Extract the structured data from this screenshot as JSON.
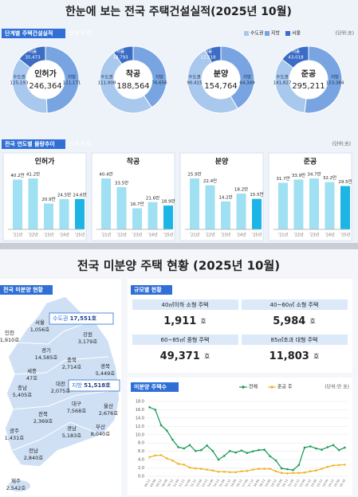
{
  "header": {
    "title": "한눈에 보는 전국 주택건설실적(2025년 10월)"
  },
  "stage": {
    "title": "단계별 주택건설실적",
    "note": "(10월 누계)",
    "legend": [
      "수도권",
      "지방",
      "서울"
    ],
    "unit": "(단위:호)"
  },
  "trend": {
    "title": "전국 연도별 물량추이",
    "note": "(10월 누계)",
    "unit": "(단위:호)"
  },
  "chart_data": [
    {
      "type": "pie",
      "title": "인허가",
      "categories": [
        "수도권",
        "지방",
        "서울"
      ],
      "values": [
        125193,
        121171,
        35473
      ],
      "value_labels": [
        "125,193",
        "121,171",
        "35,473"
      ],
      "total": "246,364",
      "colors": [
        "#a9c8ee",
        "#78a5e2",
        "#3b6cc6"
      ]
    },
    {
      "type": "pie",
      "title": "착공",
      "categories": [
        "수도권",
        "지방",
        "서울"
      ],
      "values": [
        111908,
        76656,
        18793
      ],
      "value_labels": [
        "111,908",
        "76,656",
        "18,793"
      ],
      "total": "188,564",
      "colors": [
        "#a9c8ee",
        "#78a5e2",
        "#3b6cc6"
      ]
    },
    {
      "type": "pie",
      "title": "분양",
      "categories": [
        "수도권",
        "지방",
        "서울"
      ],
      "values": [
        90415,
        64349,
        12218
      ],
      "value_labels": [
        "90,415",
        "64,349",
        "12,218"
      ],
      "total": "154,764",
      "colors": [
        "#a9c8ee",
        "#78a5e2",
        "#3b6cc6"
      ]
    },
    {
      "type": "pie",
      "title": "준공",
      "categories": [
        "수도권",
        "지방",
        "서울"
      ],
      "values": [
        141827,
        153384,
        43018
      ],
      "value_labels": [
        "141,827",
        "153,384",
        "43,018"
      ],
      "total": "295,211",
      "colors": [
        "#a9c8ee",
        "#78a5e2",
        "#3b6cc6"
      ]
    },
    {
      "type": "bar",
      "title": "인허가",
      "categories": [
        "'21년",
        "'22년",
        "'23년",
        "'24년",
        "'25년"
      ],
      "values": [
        40.2,
        41.2,
        20.9,
        24.5,
        24.6
      ],
      "value_labels": [
        "40.2만",
        "41.2만",
        "20.9만",
        "24.5만",
        "24.6만"
      ],
      "colors": [
        "#9fe0f2",
        "#9fe0f2",
        "#9fe0f2",
        "#9fe0f2",
        "#1cb5e6"
      ]
    },
    {
      "type": "bar",
      "title": "착공",
      "categories": [
        "'21년",
        "'22년",
        "'23년",
        "'24년",
        "'25년"
      ],
      "values": [
        40.4,
        33.5,
        16.7,
        21.6,
        18.9
      ],
      "value_labels": [
        "40.4만",
        "33.5만",
        "16.7만",
        "21.6만",
        "18.9만"
      ],
      "colors": [
        "#9fe0f2",
        "#9fe0f2",
        "#9fe0f2",
        "#9fe0f2",
        "#1cb5e6"
      ]
    },
    {
      "type": "bar",
      "title": "분양",
      "categories": [
        "'21년",
        "'22년",
        "'23년",
        "'24년",
        "'25년"
      ],
      "values": [
        25.9,
        22.4,
        14.2,
        18.2,
        15.5
      ],
      "value_labels": [
        "25.9만",
        "22.4만",
        "14.2만",
        "18.2만",
        "15.5만"
      ],
      "colors": [
        "#9fe0f2",
        "#9fe0f2",
        "#9fe0f2",
        "#9fe0f2",
        "#1cb5e6"
      ]
    },
    {
      "type": "bar",
      "title": "준공",
      "categories": [
        "'21년",
        "'22년",
        "'23년",
        "'24년",
        "'25년"
      ],
      "values": [
        31.7,
        33.9,
        34.7,
        32.2,
        29.5
      ],
      "value_labels": [
        "31.7만",
        "33.9만",
        "34.7만",
        "32.2만",
        "29.5만"
      ],
      "colors": [
        "#9fe0f2",
        "#9fe0f2",
        "#9fe0f2",
        "#9fe0f2",
        "#1cb5e6"
      ]
    },
    {
      "type": "line",
      "title": "미분양 주택수",
      "unit": "(단위:만 호)",
      "categories": [
        "'08.12",
        "'09.06",
        "'09.12",
        "'10.06",
        "'10.12",
        "'11.06",
        "'11.12",
        "'12.06",
        "'12.12",
        "'13.06",
        "'13.12",
        "'14.06",
        "'14.12",
        "'15.06",
        "'15.12",
        "'16.06",
        "'16.12",
        "'17.06",
        "'17.12",
        "'18.06",
        "'18.12",
        "'19.06",
        "'19.12",
        "'20.06",
        "'20.12",
        "'21.06",
        "'21.12",
        "'22.06",
        "'22.12",
        "'23.06",
        "'23.12",
        "'24.06",
        "'24.12",
        "'25.06",
        "'25.10"
      ],
      "series": [
        {
          "name": "전체",
          "color": "#1f9e5a",
          "values": [
            16.6,
            16.0,
            12.3,
            11.0,
            8.8,
            7.0,
            6.7,
            7.5,
            6.1,
            6.3,
            7.4,
            6.1,
            4.0,
            4.9,
            6.1,
            5.7,
            6.2,
            5.6,
            6.0,
            6.3,
            6.4,
            4.8,
            3.8,
            1.9,
            1.7,
            1.5,
            2.7,
            6.9,
            7.2,
            6.7,
            6.4,
            7.0,
            7.5,
            6.3,
            6.9
          ]
        },
        {
          "name": "준공 후",
          "color": "#f0b429",
          "values": [
            4.6,
            5.0,
            5.1,
            4.3,
            3.8,
            3.0,
            2.8,
            2.1,
            1.9,
            1.8,
            1.6,
            1.4,
            1.1,
            1.1,
            1.0,
            1.0,
            1.2,
            1.3,
            1.6,
            1.8,
            1.8,
            1.8,
            1.2,
            0.8,
            0.7,
            0.8,
            0.8,
            0.9,
            1.2,
            1.4,
            1.8,
            2.3,
            2.6,
            2.7,
            2.8
          ]
        }
      ],
      "ylim": [
        0,
        18
      ],
      "yticks": [
        {
          "value": 0,
          "label": "0.0"
        },
        {
          "value": 2,
          "label": "2.0"
        },
        {
          "value": 4,
          "label": "4.0"
        },
        {
          "value": 6,
          "label": "6.0"
        },
        {
          "value": 8,
          "label": "8.0"
        },
        {
          "value": 10,
          "label": "10.0"
        },
        {
          "value": 12,
          "label": "12.0"
        },
        {
          "value": 14,
          "label": "14.0"
        },
        {
          "value": 16,
          "label": "16.0"
        },
        {
          "value": 18,
          "label": "18.0"
        }
      ],
      "grid": true
    }
  ],
  "unsold": {
    "title": "전국 미분양 주택 현황 (2025년 10월)",
    "map": {
      "title": "전국 미분양 현황",
      "capital": {
        "label": "수도권",
        "value": "17,551호"
      },
      "local": {
        "label": "지방",
        "value": "51,518호"
      },
      "regions": [
        {
          "name": "서울",
          "value": "1,056호"
        },
        {
          "name": "인천",
          "value": "1,910호"
        },
        {
          "name": "경기",
          "value": "14,585호"
        },
        {
          "name": "강원",
          "value": "3,179호"
        },
        {
          "name": "충북",
          "value": "2,714호"
        },
        {
          "name": "세종",
          "value": "47호"
        },
        {
          "name": "충남",
          "value": "5,405호"
        },
        {
          "name": "대전",
          "value": "2,075호"
        },
        {
          "name": "경북",
          "value": "5,449호"
        },
        {
          "name": "대구",
          "value": "7,568호"
        },
        {
          "name": "울산",
          "value": "2,676호"
        },
        {
          "name": "전북",
          "value": "2,369호"
        },
        {
          "name": "경남",
          "value": "5,183호"
        },
        {
          "name": "부산",
          "value": "8,040호"
        },
        {
          "name": "광주",
          "value": "1,431호"
        },
        {
          "name": "전남",
          "value": "2,840호"
        },
        {
          "name": "제주",
          "value": "2,542호"
        }
      ]
    },
    "size": {
      "title": "규모별 현황",
      "cells": [
        {
          "label": "40㎡이하 소형 주택",
          "value": "1,911",
          "unit": "호"
        },
        {
          "label": "40~60㎡ 소형 주택",
          "value": "5,984",
          "unit": "호"
        },
        {
          "label": "60~85㎡ 중형 주택",
          "value": "49,371",
          "unit": "호"
        },
        {
          "label": "85㎡초과 대형 주택",
          "value": "11,803",
          "unit": "호"
        }
      ]
    }
  }
}
